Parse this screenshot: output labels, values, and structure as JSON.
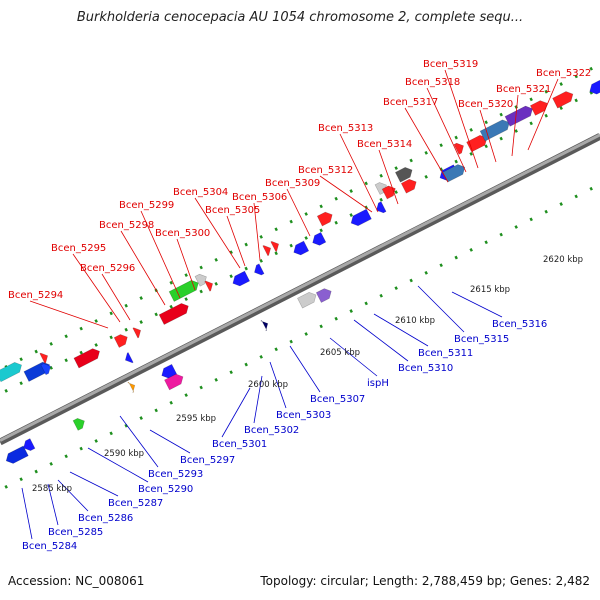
{
  "title": "Burkholderia cenocepacia AU 1054 chromosome 2, complete sequ...",
  "footer": {
    "accession": "Accession: NC_008061",
    "summary": "Topology: circular; Length: 2,788,459 bp; Genes: 2,482"
  },
  "colors": {
    "forward_label": "#e00000",
    "reverse_label": "#0000cc",
    "backbone": "#8a8a8a"
  },
  "kbp_labels": [
    "2585 kbp",
    "2590 kbp",
    "2595 kbp",
    "2600 kbp",
    "2605 kbp",
    "2610 kbp",
    "2615 kbp",
    "2620 kbp"
  ],
  "top_labels": [
    "Bcen_5294",
    "Bcen_5295",
    "Bcen_5296",
    "Bcen_5298",
    "Bcen_5299",
    "Bcen_5300",
    "Bcen_5304",
    "Bcen_5305",
    "Bcen_5306",
    "Bcen_5309",
    "Bcen_5312",
    "Bcen_5313",
    "Bcen_5314",
    "Bcen_5317",
    "Bcen_5318",
    "Bcen_5319",
    "Bcen_5320",
    "Bcen_5321",
    "Bcen_5322"
  ],
  "bottom_labels": [
    "Bcen_5284",
    "Bcen_5285",
    "Bcen_5286",
    "Bcen_5287",
    "Bcen_5290",
    "Bcen_5293",
    "Bcen_5297",
    "Bcen_5301",
    "Bcen_5302",
    "Bcen_5303",
    "Bcen_5307",
    "ispH",
    "Bcen_5310",
    "Bcen_5311",
    "Bcen_5315",
    "Bcen_5316"
  ]
}
